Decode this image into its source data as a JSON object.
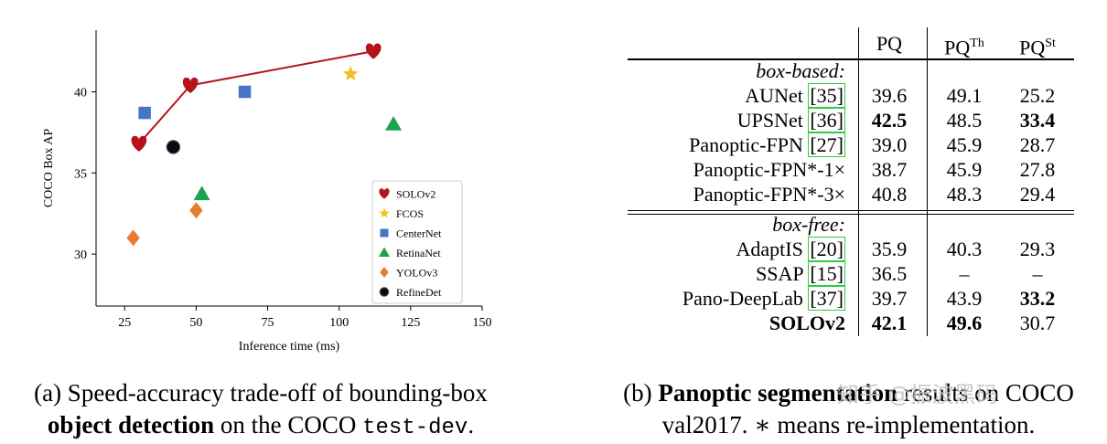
{
  "figure_a": {
    "caption_pre": "(a) Speed-accuracy trade-off of bounding-box",
    "caption_bold": "object detection",
    "caption_mid": " on the COCO ",
    "caption_mono": "test-dev",
    "caption_end": "."
  },
  "chart_data": {
    "type": "scatter",
    "xlabel": "Inference time (ms)",
    "ylabel": "COCO Box AP",
    "xlim": [
      15,
      150
    ],
    "ylim": [
      26.8,
      43.8
    ],
    "xticks": [
      25,
      50,
      75,
      100,
      125,
      150
    ],
    "yticks": [
      30,
      35,
      40
    ],
    "legend": "lower-right",
    "series": [
      {
        "name": "SOLOv2",
        "marker": "heart",
        "color": "#b5121b",
        "line": true,
        "points": [
          [
            30,
            36.8
          ],
          [
            48,
            40.4
          ],
          [
            112,
            42.5
          ]
        ]
      },
      {
        "name": "FCOS",
        "marker": "star",
        "color": "#f6be1e",
        "points": [
          [
            104,
            41.1
          ]
        ]
      },
      {
        "name": "CenterNet",
        "marker": "square",
        "color": "#4575c4",
        "points": [
          [
            32,
            38.7
          ],
          [
            67,
            40.0
          ]
        ]
      },
      {
        "name": "RetinaNet",
        "marker": "triangle",
        "color": "#1aa251",
        "points": [
          [
            52,
            33.7
          ],
          [
            119,
            38.0
          ]
        ]
      },
      {
        "name": "YOLOv3",
        "marker": "diamond",
        "color": "#e57d32",
        "points": [
          [
            28,
            31.0
          ],
          [
            50,
            32.7
          ]
        ]
      },
      {
        "name": "RefineDet",
        "marker": "circle",
        "color": "#0a0a14",
        "points": [
          [
            42,
            36.6
          ]
        ]
      }
    ]
  },
  "table": {
    "headers": {
      "col1": "PQ",
      "col2_base": "PQ",
      "col2_sup": "Th",
      "col3_base": "PQ",
      "col3_sup": "St"
    },
    "sections": [
      {
        "label": "box-based:",
        "rows": [
          {
            "name": "AUNet",
            "ref": "35",
            "pq": "39.6",
            "th": "49.1",
            "st": "25.2",
            "bold": []
          },
          {
            "name": "UPSNet",
            "ref": "36",
            "pq": "42.5",
            "th": "48.5",
            "st": "33.4",
            "bold": [
              "pq",
              "st"
            ]
          },
          {
            "name": "Panoptic-FPN",
            "ref": "27",
            "pq": "39.0",
            "th": "45.9",
            "st": "28.7",
            "bold": []
          },
          {
            "name": "Panoptic-FPN*-1×",
            "ref": "",
            "pq": "38.7",
            "th": "45.9",
            "st": "27.8",
            "bold": []
          },
          {
            "name": "Panoptic-FPN*-3×",
            "ref": "",
            "pq": "40.8",
            "th": "48.3",
            "st": "29.4",
            "bold": []
          }
        ]
      },
      {
        "label": "box-free:",
        "rows": [
          {
            "name": "AdaptIS",
            "ref": "20",
            "pq": "35.9",
            "th": "40.3",
            "st": "29.3",
            "bold": []
          },
          {
            "name": "SSAP",
            "ref": "15",
            "pq": "36.5",
            "th": "–",
            "st": "–",
            "bold": []
          },
          {
            "name": "Pano-DeepLab",
            "ref": "37",
            "pq": "39.7",
            "th": "43.9",
            "st": "33.2",
            "bold": [
              "st"
            ]
          },
          {
            "name": "SOLOv2",
            "ref": "",
            "pq": "42.1",
            "th": "49.6",
            "st": "30.7",
            "bold": [
              "name",
              "pq",
              "th"
            ]
          }
        ]
      }
    ]
  },
  "figure_b": {
    "caption_pre": "(b) ",
    "caption_bold": "Panoptic segmentation",
    "caption_rest": " results on COCO",
    "caption_line2": "val2017. ∗ means re-implementation."
  },
  "watermark": "知乎 @振波黑码"
}
